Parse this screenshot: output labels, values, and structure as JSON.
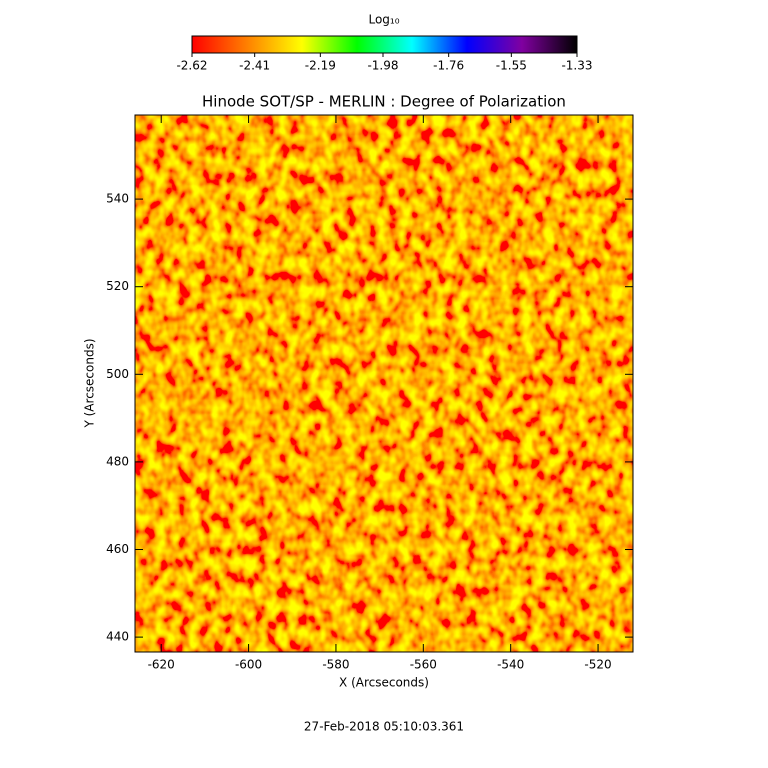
{
  "chart_data": {
    "type": "image",
    "title": "Hinode SOT/SP - MERLIN : Degree of Polarization",
    "x_label": "X (Arcseconds)",
    "y_label": "Y (Arcseconds)",
    "footer": "27-Feb-2018 05:10:03.361",
    "xlim": [
      -626,
      -512
    ],
    "xticks": [
      -620,
      -600,
      -580,
      -560,
      -540,
      -520
    ],
    "ylim": [
      436.6,
      559.2
    ],
    "yticks": [
      440,
      460,
      480,
      500,
      520,
      540
    ],
    "colorbar": {
      "title": "Log₁₀",
      "lim": [
        -2.62,
        -1.33
      ],
      "ticks": [
        -2.62,
        -2.41,
        -2.19,
        -1.98,
        -1.76,
        -1.55,
        -1.33
      ],
      "colormap": [
        "#ff0000",
        "#ff8000",
        "#ffff00",
        "#00ff00",
        "#00ffff",
        "#0000ff",
        "#8000a0",
        "#000000"
      ]
    }
  }
}
